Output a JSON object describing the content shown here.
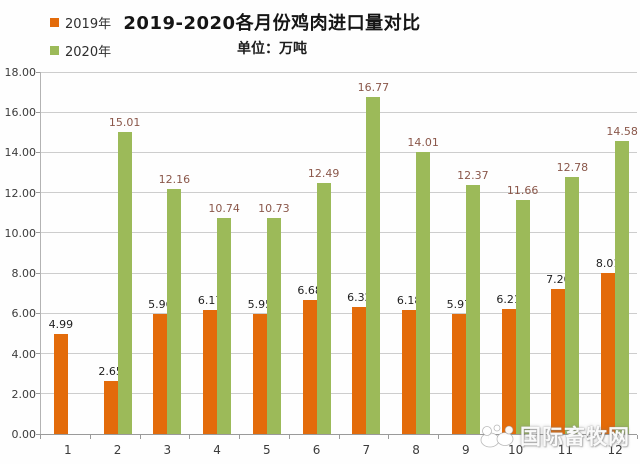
{
  "chart_data": {
    "type": "bar",
    "title": "2019-2020各月份鸡肉进口量对比",
    "unit_label": "单位：万吨",
    "categories": [
      "1",
      "2",
      "3",
      "4",
      "5",
      "6",
      "7",
      "8",
      "9",
      "10",
      "11",
      "12"
    ],
    "series": [
      {
        "name": "2019年",
        "color": "#e36b0a",
        "label_color": "#1f1f1f",
        "values": [
          4.99,
          2.65,
          5.96,
          6.17,
          5.95,
          6.68,
          6.32,
          6.18,
          5.97,
          6.21,
          7.2,
          8.01
        ]
      },
      {
        "name": "2020年",
        "color": "#9cba59",
        "label_color": "#8a574a",
        "values": [
          null,
          15.01,
          12.16,
          10.74,
          10.73,
          12.49,
          16.77,
          14.01,
          12.37,
          11.66,
          12.78,
          14.58
        ]
      }
    ],
    "ylim": [
      0,
      18
    ],
    "ytick_step": 2,
    "yticks": [
      "0.00",
      "2.00",
      "4.00",
      "6.00",
      "8.00",
      "10.00",
      "12.00",
      "14.00",
      "16.00",
      "18.00"
    ],
    "grid": true,
    "legend_position": "top-left",
    "value_labels_decimals": 2
  },
  "watermark": {
    "text": "国际畜牧网"
  }
}
